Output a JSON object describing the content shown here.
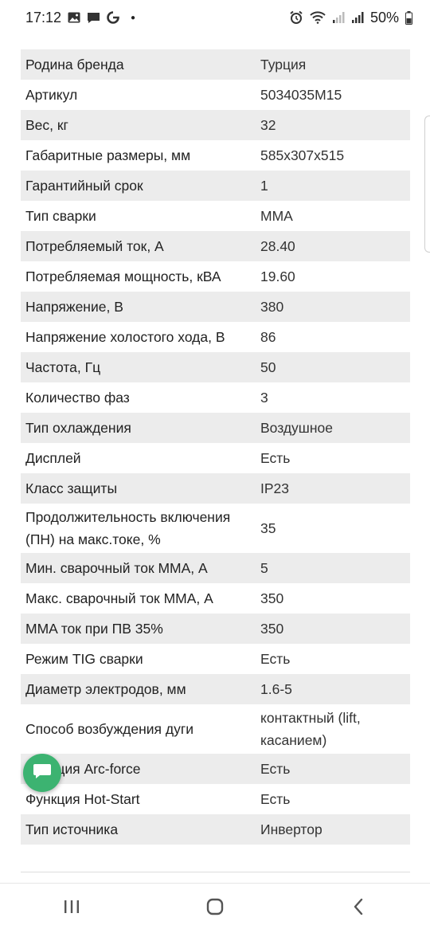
{
  "status_bar": {
    "time": "17:12",
    "battery": "50%",
    "icons": [
      "gallery-icon",
      "message-icon",
      "google-icon",
      "dot-icon",
      "alarm-icon",
      "wifi-icon",
      "signal-icon",
      "signal-icon",
      "battery-icon"
    ]
  },
  "specs": [
    {
      "label": "Родина бренда",
      "value": "Турция"
    },
    {
      "label": "Артикул",
      "value": "5034035M15"
    },
    {
      "label": "Вес, кг",
      "value": "32"
    },
    {
      "label": "Габаритные размеры, мм",
      "value": "585x307x515"
    },
    {
      "label": "Гарантийный срок",
      "value": "1"
    },
    {
      "label": "Тип сварки",
      "value": "MMA"
    },
    {
      "label": "Потребляемый ток, А",
      "value": "28.40"
    },
    {
      "label": "Потребляемая мощность, кВА",
      "value": "19.60"
    },
    {
      "label": "Напряжение, В",
      "value": "380"
    },
    {
      "label": "Напряжение холостого хода, В",
      "value": "86"
    },
    {
      "label": "Частота, Гц",
      "value": "50"
    },
    {
      "label": "Количество фаз",
      "value": "3"
    },
    {
      "label": "Тип охлаждения",
      "value": "Воздушное"
    },
    {
      "label": "Дисплей",
      "value": "Есть"
    },
    {
      "label": "Класс защиты",
      "value": "IP23"
    },
    {
      "label": "Продолжительность включения (ПН) на макс.токе, %",
      "value": "35"
    },
    {
      "label": "Мин. сварочный ток MMA, А",
      "value": "5"
    },
    {
      "label": "Макс. сварочный ток MMA, А",
      "value": "350"
    },
    {
      "label": "MMA ток при ПВ 35%",
      "value": "350"
    },
    {
      "label": "Режим TIG сварки",
      "value": "Есть"
    },
    {
      "label": "Диаметр электродов, мм",
      "value": "1.6-5"
    },
    {
      "label": "Способ возбуждения дуги",
      "value": "контактный (lift, касанием)"
    },
    {
      "label": "Функция Arc-force",
      "value": "Есть"
    },
    {
      "label": "Функция Hot-Start",
      "value": "Есть"
    },
    {
      "label": "Тип источника",
      "value": "Инвертор"
    }
  ],
  "colors": {
    "row_stripe": "#ececec",
    "chat_button": "#3cb371"
  },
  "nav_bar": {
    "icons": [
      "recent-apps-icon",
      "home-icon",
      "back-icon"
    ]
  }
}
